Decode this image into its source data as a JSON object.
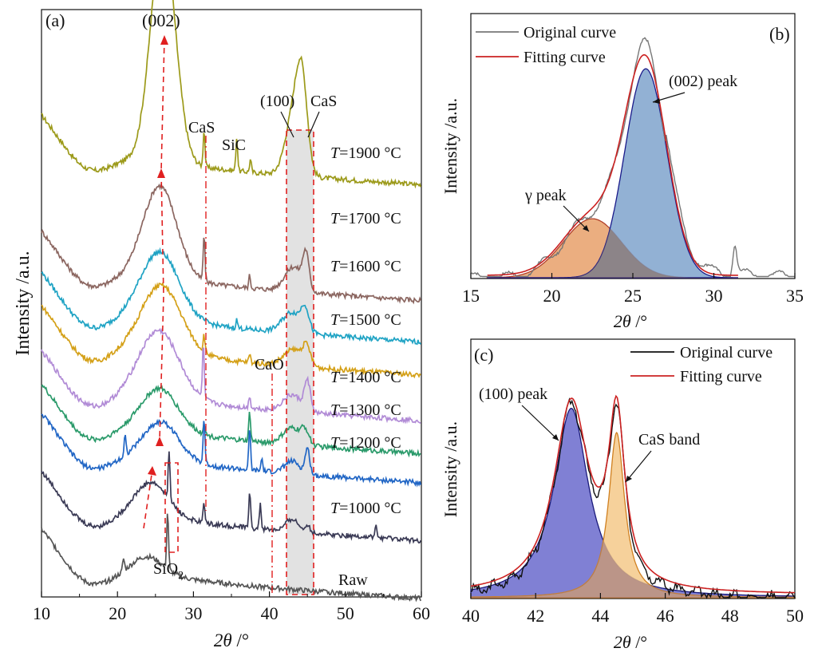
{
  "chart_data": [
    {
      "panel": "(a)",
      "type": "line",
      "xlabel": "2θ /°",
      "ylabel": "Intensity /a.u.",
      "xlim": [
        10,
        60
      ],
      "xticks": [
        10,
        20,
        30,
        40,
        50,
        60
      ],
      "series": [
        {
          "name": "T=1900 °C",
          "label_prefix": "T",
          "label_rest": "=1900 °C",
          "color": "#9c9a1a",
          "baseline": 0.8,
          "peak002": [
            26.0,
            0.55,
            1.6
          ],
          "sharp": [
            [
              31.4,
              0.09
            ],
            [
              35.7,
              0.08
            ],
            [
              37.5,
              0.03
            ]
          ],
          "band100": [
            [
              43.3,
              0.16,
              1.1
            ],
            [
              44.3,
              0.17,
              0.7
            ]
          ]
        },
        {
          "name": "T=1700 °C",
          "label_prefix": "T",
          "label_rest": "=1700 °C",
          "color": "#8b6660",
          "baseline": 0.52,
          "peak002": [
            25.6,
            0.22,
            2.2
          ],
          "sharp": [
            [
              31.4,
              0.11
            ],
            [
              37.4,
              0.03
            ]
          ],
          "band100": [
            [
              43.2,
              0.06,
              1.2
            ],
            [
              44.8,
              0.08,
              0.4
            ]
          ]
        },
        {
          "name": "T=1600 °C",
          "label_prefix": "T",
          "label_rest": "=1600 °C",
          "color": "#1fa3c4",
          "baseline": 0.42,
          "peak002": [
            25.6,
            0.16,
            2.5
          ],
          "sharp": [
            [
              35.7,
              0.02
            ]
          ],
          "band100": [
            [
              43.0,
              0.05,
              1.3
            ],
            [
              44.7,
              0.05,
              0.5
            ]
          ]
        },
        {
          "name": "T=1500 °C",
          "label_prefix": "T",
          "label_rest": "=1500 °C",
          "color": "#d4a017",
          "baseline": 0.34,
          "peak002": [
            25.8,
            0.16,
            2.6
          ],
          "sharp": [
            [
              31.4,
              0.04
            ],
            [
              37.4,
              0.02
            ]
          ],
          "band100": [
            [
              43.2,
              0.04,
              1.3
            ],
            [
              44.9,
              0.04,
              0.5
            ]
          ]
        },
        {
          "name": "T=1400 °C",
          "label_prefix": "T",
          "label_rest": "=1400 °C",
          "color": "#b18bd6",
          "baseline": 0.23,
          "peak002": [
            25.5,
            0.16,
            2.6
          ],
          "sharp": [
            [
              31.3,
              0.13
            ],
            [
              37.4,
              0.03
            ]
          ],
          "band100": [
            [
              43.0,
              0.04,
              1.2
            ],
            [
              45.0,
              0.07,
              0.4
            ]
          ]
        },
        {
          "name": "T=1300 °C",
          "label_prefix": "T",
          "label_rest": "=1300 °C",
          "color": "#2a9a6a",
          "baseline": 0.15,
          "peak002": [
            25.6,
            0.1,
            2.4
          ],
          "sharp": [
            [
              31.4,
              0.03
            ],
            [
              37.4,
              0.07
            ]
          ],
          "band100": [
            [
              43.0,
              0.04,
              1.2
            ],
            [
              44.7,
              0.03,
              0.5
            ]
          ]
        },
        {
          "name": "T=1200 °C",
          "label_prefix": "T",
          "label_rest": "=1200 °C",
          "color": "#2166c5",
          "baseline": 0.08,
          "peak002": [
            25.8,
            0.09,
            2.3
          ],
          "sharp": [
            [
              21.0,
              0.05
            ],
            [
              31.4,
              0.11
            ],
            [
              37.4,
              0.1
            ],
            [
              39.0,
              0.03
            ]
          ],
          "band100": [
            [
              43.0,
              0.03,
              1.0
            ],
            [
              45.0,
              0.06,
              0.3
            ]
          ]
        },
        {
          "name": "T=1000 °C",
          "label_prefix": "T",
          "label_rest": "=1000 °C",
          "color": "#3a3a55",
          "baseline": -0.06,
          "peak002": [
            24.5,
            0.08,
            2.2
          ],
          "sharp": [
            [
              26.8,
              0.12
            ],
            [
              31.4,
              0.05
            ],
            [
              37.4,
              0.09
            ],
            [
              38.8,
              0.06
            ],
            [
              54.0,
              0.03
            ]
          ],
          "band100": [
            [
              43.0,
              0.03,
              0.8
            ],
            [
              45.0,
              0.02,
              0.3
            ]
          ]
        },
        {
          "name": "Raw",
          "label_prefix": "",
          "label_rest": "Raw",
          "color": "#555555",
          "baseline": -0.2,
          "peak002": [
            24.0,
            0.04,
            2.0
          ],
          "sharp": [
            [
              20.8,
              0.03
            ],
            [
              26.6,
              0.14
            ]
          ],
          "band100": []
        }
      ],
      "annotations": {
        "panel_label": "(a)",
        "p002": "(002)",
        "cas1": "CaS",
        "sic": "SiC",
        "p100": "(100)",
        "cas2": "CaS",
        "cao": "CaO",
        "sio2": "SiO",
        "sio2_sub": "2"
      }
    },
    {
      "panel": "(b)",
      "type": "line",
      "xlabel": "2θ /°",
      "ylabel": "Intensity /a.u.",
      "xlim": [
        15,
        35
      ],
      "xticks": [
        15,
        20,
        25,
        30,
        35
      ],
      "legend": [
        "Original curve",
        "Fitting curve"
      ],
      "peaks": [
        {
          "name": "γ peak",
          "center": 22.5,
          "height": 0.24,
          "width": 1.8,
          "fill": "#e8a06a",
          "edge": "#b0402a"
        },
        {
          "name": "(002) peak",
          "center": 25.8,
          "height": 0.85,
          "width": 1.3,
          "fill": "#7fa3cc",
          "edge": "#1a1a8a"
        }
      ],
      "colors": {
        "original": "#777777",
        "fitting": "#cc2222"
      }
    },
    {
      "panel": "(c)",
      "type": "line",
      "xlabel": "2θ /°",
      "ylabel": "Intensity /a.u.",
      "xlim": [
        40,
        50
      ],
      "xticks": [
        40,
        42,
        44,
        46,
        48,
        50
      ],
      "legend": [
        "Original curve",
        "Fitting curve"
      ],
      "peaks": [
        {
          "name": "(100) peak",
          "center": 43.1,
          "height": 0.78,
          "width": 0.65,
          "fill": "#6a6acc",
          "edge": "#1a1a7a"
        },
        {
          "name": "CaS band",
          "center": 44.5,
          "height": 0.68,
          "width": 0.3,
          "fill": "#f5c98a",
          "edge": "#d08020"
        }
      ],
      "colors": {
        "original": "#111111",
        "fitting": "#cc2222"
      }
    }
  ],
  "labels": {
    "panel_b": "(b)",
    "panel_c": "(c)",
    "b_gamma": "γ peak",
    "b_002": "(002) peak",
    "c_100": "(100) peak",
    "c_cas": "CaS band",
    "legend_original": "Original curve",
    "legend_fitting": "Fitting curve",
    "ylabel": "Intensity /a.u.",
    "xlabel_italic": "2θ",
    "xlabel_rest": " /°"
  }
}
